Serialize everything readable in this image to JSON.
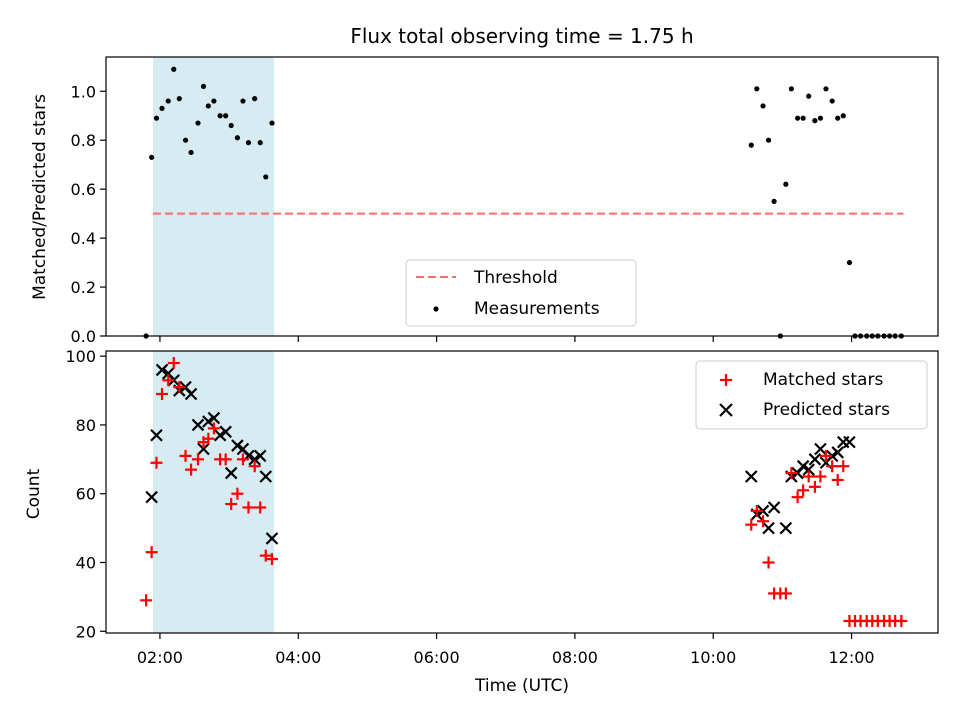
{
  "title": "Flux total observing time = 1.75 h",
  "xlabel": "Time (UTC)",
  "x_tick_labels": [
    "02:00",
    "04:00",
    "06:00",
    "08:00",
    "10:00",
    "12:00"
  ],
  "x_tick_hours": [
    2,
    4,
    6,
    8,
    10,
    12
  ],
  "xlim_hours": [
    1.22,
    13.25
  ],
  "highlight_span_hours": [
    1.9,
    3.65
  ],
  "colors": {
    "span": "#add8e6",
    "threshold": "#ff6b6b",
    "measure": "#000000",
    "matched": "#ff0000",
    "predicted": "#000000"
  },
  "chart_data": [
    {
      "type": "scatter",
      "ylabel": "Matched/Predicted stars",
      "ylim": [
        0,
        1.14
      ],
      "y_ticks": [
        0.0,
        0.2,
        0.4,
        0.6,
        0.8,
        1.0
      ],
      "y_tick_labels": [
        "0.0",
        "0.2",
        "0.4",
        "0.6",
        "0.8",
        "1.0"
      ],
      "threshold": {
        "label": "Threshold",
        "value": 0.5,
        "x_range_hours": [
          1.9,
          12.75
        ]
      },
      "measurements_label": "Measurements",
      "legend_position": "lower-center",
      "measurements": [
        [
          1.8,
          0.0
        ],
        [
          1.88,
          0.73
        ],
        [
          1.95,
          0.89
        ],
        [
          2.03,
          0.93
        ],
        [
          2.12,
          0.96
        ],
        [
          2.2,
          1.09
        ],
        [
          2.28,
          0.97
        ],
        [
          2.37,
          0.8
        ],
        [
          2.45,
          0.75
        ],
        [
          2.55,
          0.87
        ],
        [
          2.63,
          1.02
        ],
        [
          2.7,
          0.94
        ],
        [
          2.78,
          0.96
        ],
        [
          2.87,
          0.9
        ],
        [
          2.95,
          0.9
        ],
        [
          3.03,
          0.86
        ],
        [
          3.12,
          0.81
        ],
        [
          3.2,
          0.96
        ],
        [
          3.28,
          0.79
        ],
        [
          3.37,
          0.97
        ],
        [
          3.45,
          0.79
        ],
        [
          3.53,
          0.65
        ],
        [
          3.62,
          0.87
        ],
        [
          10.55,
          0.78
        ],
        [
          10.63,
          1.01
        ],
        [
          10.72,
          0.94
        ],
        [
          10.8,
          0.8
        ],
        [
          10.88,
          0.55
        ],
        [
          10.97,
          0.0
        ],
        [
          11.05,
          0.62
        ],
        [
          11.13,
          1.01
        ],
        [
          11.22,
          0.89
        ],
        [
          11.3,
          0.89
        ],
        [
          11.38,
          0.98
        ],
        [
          11.47,
          0.88
        ],
        [
          11.55,
          0.89
        ],
        [
          11.63,
          1.01
        ],
        [
          11.72,
          0.96
        ],
        [
          11.8,
          0.89
        ],
        [
          11.88,
          0.9
        ],
        [
          11.97,
          0.3
        ],
        [
          12.05,
          0.0
        ],
        [
          12.13,
          0.0
        ],
        [
          12.22,
          0.0
        ],
        [
          12.3,
          0.0
        ],
        [
          12.38,
          0.0
        ],
        [
          12.47,
          0.0
        ],
        [
          12.55,
          0.0
        ],
        [
          12.63,
          0.0
        ],
        [
          12.72,
          0.0
        ]
      ]
    },
    {
      "type": "scatter",
      "ylabel": "Count",
      "ylim": [
        19.5,
        101.5
      ],
      "y_ticks": [
        20,
        40,
        60,
        80,
        100
      ],
      "y_tick_labels": [
        "20",
        "40",
        "60",
        "80",
        "100"
      ],
      "legend_position": "upper-right",
      "series": [
        {
          "name": "Matched stars",
          "marker": "plus",
          "points": [
            [
              1.8,
              29
            ],
            [
              1.88,
              43
            ],
            [
              1.95,
              69
            ],
            [
              2.03,
              89
            ],
            [
              2.12,
              93
            ],
            [
              2.2,
              98
            ],
            [
              2.28,
              91
            ],
            [
              2.37,
              71
            ],
            [
              2.45,
              67
            ],
            [
              2.55,
              70
            ],
            [
              2.63,
              75
            ],
            [
              2.7,
              76
            ],
            [
              2.78,
              79
            ],
            [
              2.87,
              70
            ],
            [
              2.95,
              70
            ],
            [
              3.03,
              57
            ],
            [
              3.12,
              60
            ],
            [
              3.2,
              70
            ],
            [
              3.28,
              56
            ],
            [
              3.37,
              68
            ],
            [
              3.45,
              56
            ],
            [
              3.53,
              42
            ],
            [
              3.62,
              41
            ],
            [
              10.55,
              51
            ],
            [
              10.63,
              55
            ],
            [
              10.72,
              52
            ],
            [
              10.8,
              40
            ],
            [
              10.88,
              31
            ],
            [
              10.97,
              31
            ],
            [
              11.05,
              31
            ],
            [
              11.13,
              66
            ],
            [
              11.22,
              59
            ],
            [
              11.3,
              61
            ],
            [
              11.38,
              65
            ],
            [
              11.47,
              62
            ],
            [
              11.55,
              65
            ],
            [
              11.63,
              71
            ],
            [
              11.72,
              68
            ],
            [
              11.8,
              64
            ],
            [
              11.88,
              68
            ],
            [
              11.97,
              23
            ],
            [
              12.05,
              23
            ],
            [
              12.13,
              23
            ],
            [
              12.22,
              23
            ],
            [
              12.3,
              23
            ],
            [
              12.38,
              23
            ],
            [
              12.47,
              23
            ],
            [
              12.55,
              23
            ],
            [
              12.63,
              23
            ],
            [
              12.72,
              23
            ]
          ]
        },
        {
          "name": "Predicted stars",
          "marker": "x",
          "points": [
            [
              1.88,
              59
            ],
            [
              1.95,
              77
            ],
            [
              2.03,
              96
            ],
            [
              2.12,
              95
            ],
            [
              2.2,
              93
            ],
            [
              2.28,
              90
            ],
            [
              2.37,
              91
            ],
            [
              2.45,
              89
            ],
            [
              2.55,
              80
            ],
            [
              2.63,
              73
            ],
            [
              2.7,
              81
            ],
            [
              2.78,
              82
            ],
            [
              2.87,
              77
            ],
            [
              2.95,
              78
            ],
            [
              3.03,
              66
            ],
            [
              3.12,
              74
            ],
            [
              3.2,
              73
            ],
            [
              3.28,
              71
            ],
            [
              3.37,
              70
            ],
            [
              3.45,
              71
            ],
            [
              3.53,
              65
            ],
            [
              3.62,
              47
            ],
            [
              10.55,
              65
            ],
            [
              10.63,
              54
            ],
            [
              10.72,
              55
            ],
            [
              10.8,
              50
            ],
            [
              10.88,
              56
            ],
            [
              11.05,
              50
            ],
            [
              11.13,
              65
            ],
            [
              11.22,
              66
            ],
            [
              11.3,
              68
            ],
            [
              11.38,
              67
            ],
            [
              11.47,
              70
            ],
            [
              11.55,
              73
            ],
            [
              11.63,
              69
            ],
            [
              11.72,
              71
            ],
            [
              11.8,
              72
            ],
            [
              11.88,
              75
            ],
            [
              11.97,
              75
            ]
          ]
        }
      ]
    }
  ]
}
